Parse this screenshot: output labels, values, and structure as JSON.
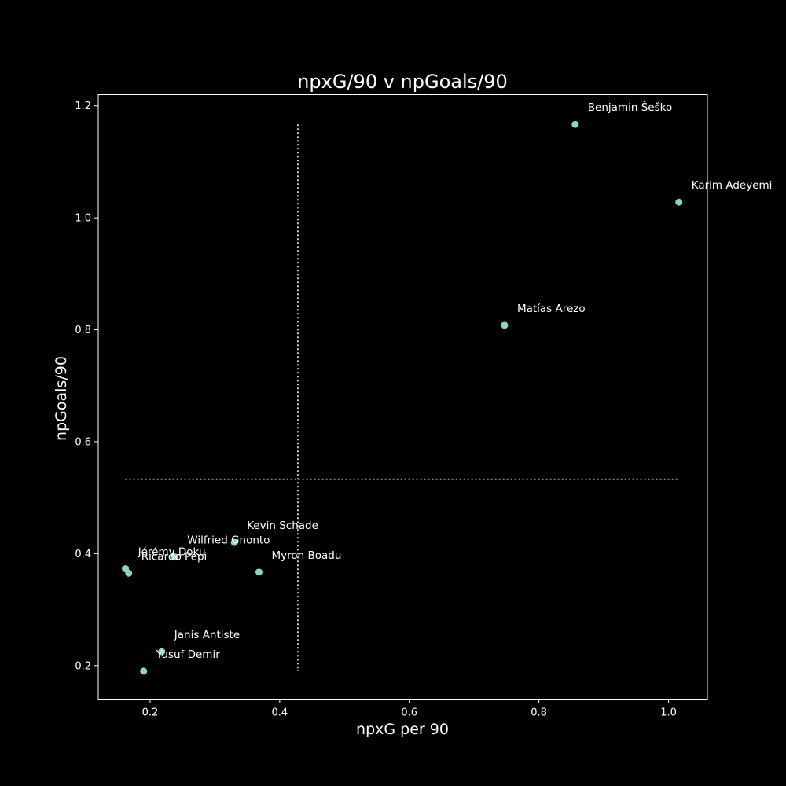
{
  "chart_data": {
    "type": "scatter",
    "title": "npxG/90 v npGoals/90",
    "xlabel": "npxG per 90",
    "ylabel": "npGoals/90",
    "xlim": [
      0.12,
      1.06
    ],
    "ylim": [
      0.14,
      1.22
    ],
    "xticks": [
      0.2,
      0.4,
      0.6,
      0.8,
      1.0
    ],
    "xtick_labels": [
      "0.2",
      "0.4",
      "0.6",
      "0.8",
      "1.0"
    ],
    "yticks": [
      0.2,
      0.4,
      0.6,
      0.8,
      1.0,
      1.2
    ],
    "ytick_labels": [
      "0.2",
      "0.4",
      "0.6",
      "0.8",
      "1.0",
      "1.2"
    ],
    "grid": false,
    "legend": "none",
    "point_color": "#8dd3c7",
    "reference_line_color": "#ffffcc",
    "mean_x": 0.428,
    "mean_y": 0.533,
    "points": [
      {
        "name": "Benjamin Šeško",
        "x": 0.856,
        "y": 1.167
      },
      {
        "name": "Karim Adeyemi",
        "x": 1.016,
        "y": 1.028
      },
      {
        "name": "Matías Arezo",
        "x": 0.747,
        "y": 0.808
      },
      {
        "name": "Kevin Schade",
        "x": 0.33,
        "y": 0.42
      },
      {
        "name": "Wilfried Gnonto",
        "x": 0.238,
        "y": 0.394
      },
      {
        "name": "Myron Boadu",
        "x": 0.368,
        "y": 0.367
      },
      {
        "name": "Jérémy Doku",
        "x": 0.162,
        "y": 0.373
      },
      {
        "name": "Ricardo Pepi",
        "x": 0.167,
        "y": 0.365
      },
      {
        "name": "Janis Antiste",
        "x": 0.218,
        "y": 0.225
      },
      {
        "name": "Yusuf Demir",
        "x": 0.19,
        "y": 0.19
      }
    ]
  }
}
